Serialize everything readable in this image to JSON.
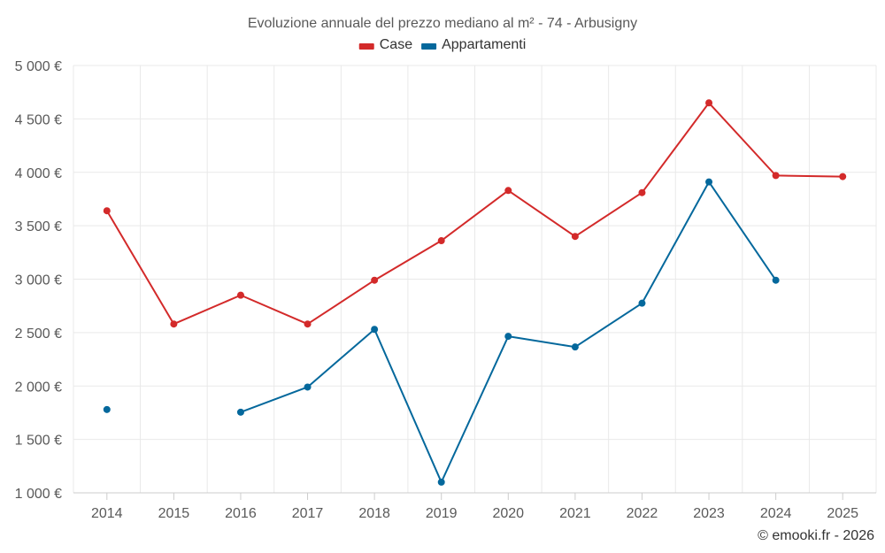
{
  "chart_data": {
    "type": "line",
    "title": "Evoluzione annuale del prezzo mediano al m² - 74 - Arbusigny",
    "categories": [
      "2014",
      "2015",
      "2016",
      "2017",
      "2018",
      "2019",
      "2020",
      "2021",
      "2022",
      "2023",
      "2024",
      "2025"
    ],
    "ylim": [
      1000,
      5000
    ],
    "yticks": [
      1000,
      1500,
      2000,
      2500,
      3000,
      3500,
      4000,
      4500,
      5000
    ],
    "ytick_labels": [
      "1 000 €",
      "1 500 €",
      "2 000 €",
      "2 500 €",
      "3 000 €",
      "3 500 €",
      "4 000 €",
      "4 500 €",
      "5 000 €"
    ],
    "xlabel": "",
    "ylabel": "",
    "legend_position": "top-center",
    "grid": true,
    "series": [
      {
        "name": "Case",
        "color": "#d32a2a",
        "values": [
          3640,
          2580,
          2850,
          2580,
          2990,
          3360,
          3830,
          3400,
          3810,
          4650,
          3970,
          3960
        ]
      },
      {
        "name": "Appartamenti",
        "color": "#04689c",
        "values": [
          1780,
          null,
          1755,
          1990,
          2530,
          1100,
          2465,
          2365,
          2775,
          3910,
          2990,
          null
        ]
      }
    ]
  },
  "credit": "© emooki.fr - 2026"
}
